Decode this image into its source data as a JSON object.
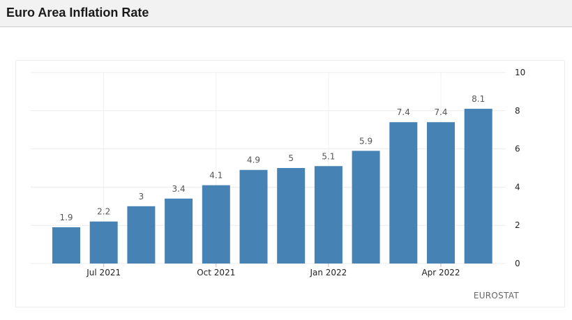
{
  "header": {
    "title": "Euro Area Inflation Rate"
  },
  "source": "EUROSTAT",
  "chart_data": {
    "type": "bar",
    "categories": [
      "Jun 2021",
      "Jul 2021",
      "Aug 2021",
      "Sep 2021",
      "Oct 2021",
      "Nov 2021",
      "Dec 2021",
      "Jan 2022",
      "Feb 2022",
      "Mar 2022",
      "Apr 2022",
      "May 2022"
    ],
    "values": [
      1.9,
      2.2,
      3,
      3.4,
      4.1,
      4.9,
      5,
      5.1,
      5.9,
      7.4,
      7.4,
      8.1
    ],
    "value_labels": [
      "1.9",
      "2.2",
      "3",
      "3.4",
      "4.1",
      "4.9",
      "5",
      "5.1",
      "5.9",
      "7.4",
      "7.4",
      "8.1"
    ],
    "x_tick_labels": [
      "Jul 2021",
      "Oct 2021",
      "Jan 2022",
      "Apr 2022"
    ],
    "x_tick_indices": [
      1,
      4,
      7,
      10
    ],
    "y_ticks": [
      0,
      2,
      4,
      6,
      8,
      10
    ],
    "ylim": [
      0,
      10
    ],
    "y_axis_side": "right",
    "grid": true,
    "bar_color": "#4682b4"
  }
}
